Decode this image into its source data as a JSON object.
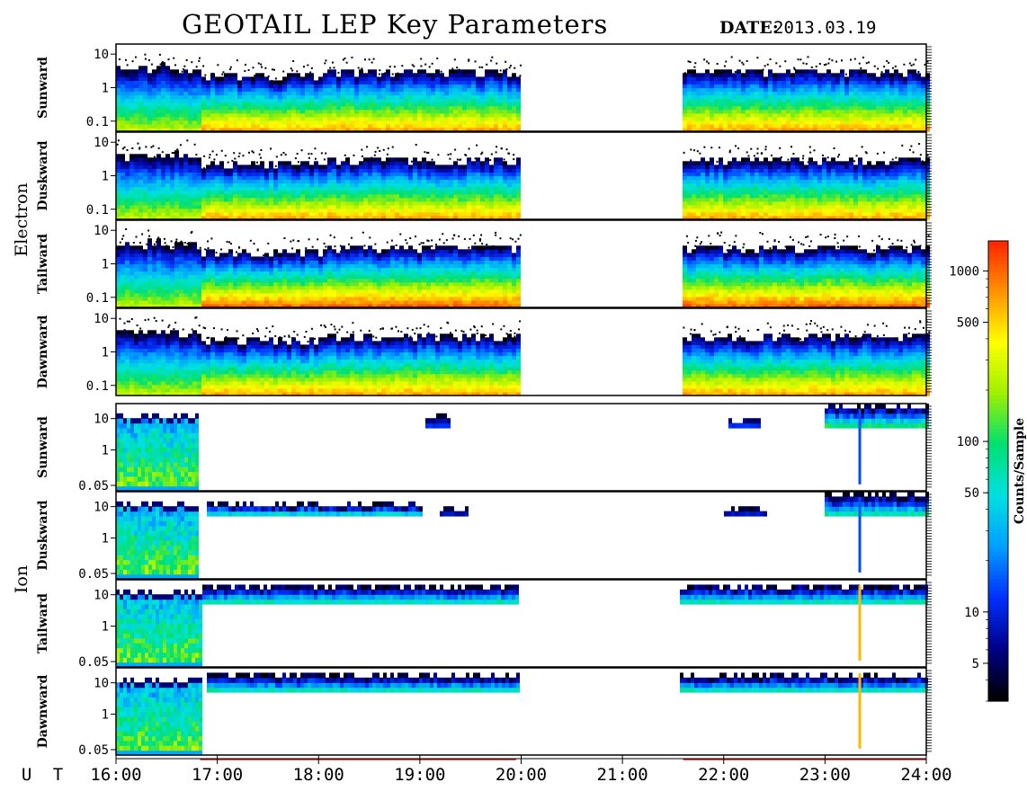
{
  "header": {
    "title": "GEOTAIL LEP Key Parameters",
    "date_label": "DATE:",
    "date_value": "2013.03.19"
  },
  "groups": [
    {
      "name": "Electron",
      "panels": [
        "Sunward",
        "Duskward",
        "Tailward",
        "Dawnward"
      ]
    },
    {
      "name": "Ion",
      "panels": [
        "Sunward",
        "Duskward",
        "Tailward",
        "Dawnward"
      ]
    }
  ],
  "chart_data": {
    "type": "heatmap",
    "title": "GEOTAIL LEP Key Parameters",
    "x_axis": {
      "label": "U T",
      "range_hours": [
        16,
        24
      ],
      "tick_labels": [
        "16:00",
        "17:00",
        "18:00",
        "19:00",
        "20:00",
        "21:00",
        "22:00",
        "23:00",
        "24:00"
      ]
    },
    "electron_y_axis": {
      "scale": "log",
      "tick_labels": [
        "10",
        "1",
        "0.1"
      ],
      "range": [
        0.05,
        20
      ]
    },
    "ion_y_axis": {
      "scale": "log",
      "tick_labels": [
        "10",
        "1",
        "0.05"
      ],
      "range": [
        0.05,
        30
      ]
    },
    "data_gaps_hours": [
      [
        19.97,
        21.57
      ]
    ],
    "colorbar": {
      "label": "Counts/Sample",
      "scale": "log",
      "range": [
        3,
        1500
      ],
      "tick_labels": [
        "1000",
        "500",
        "100",
        "50",
        "10",
        "5"
      ],
      "tick_values": [
        1000,
        500,
        100,
        50,
        10,
        5
      ],
      "colors": [
        "#000000",
        "#000088",
        "#0030ff",
        "#00a0ff",
        "#00e0e0",
        "#00e070",
        "#a0f000",
        "#ffff00",
        "#ff9000",
        "#ff2000"
      ]
    }
  }
}
